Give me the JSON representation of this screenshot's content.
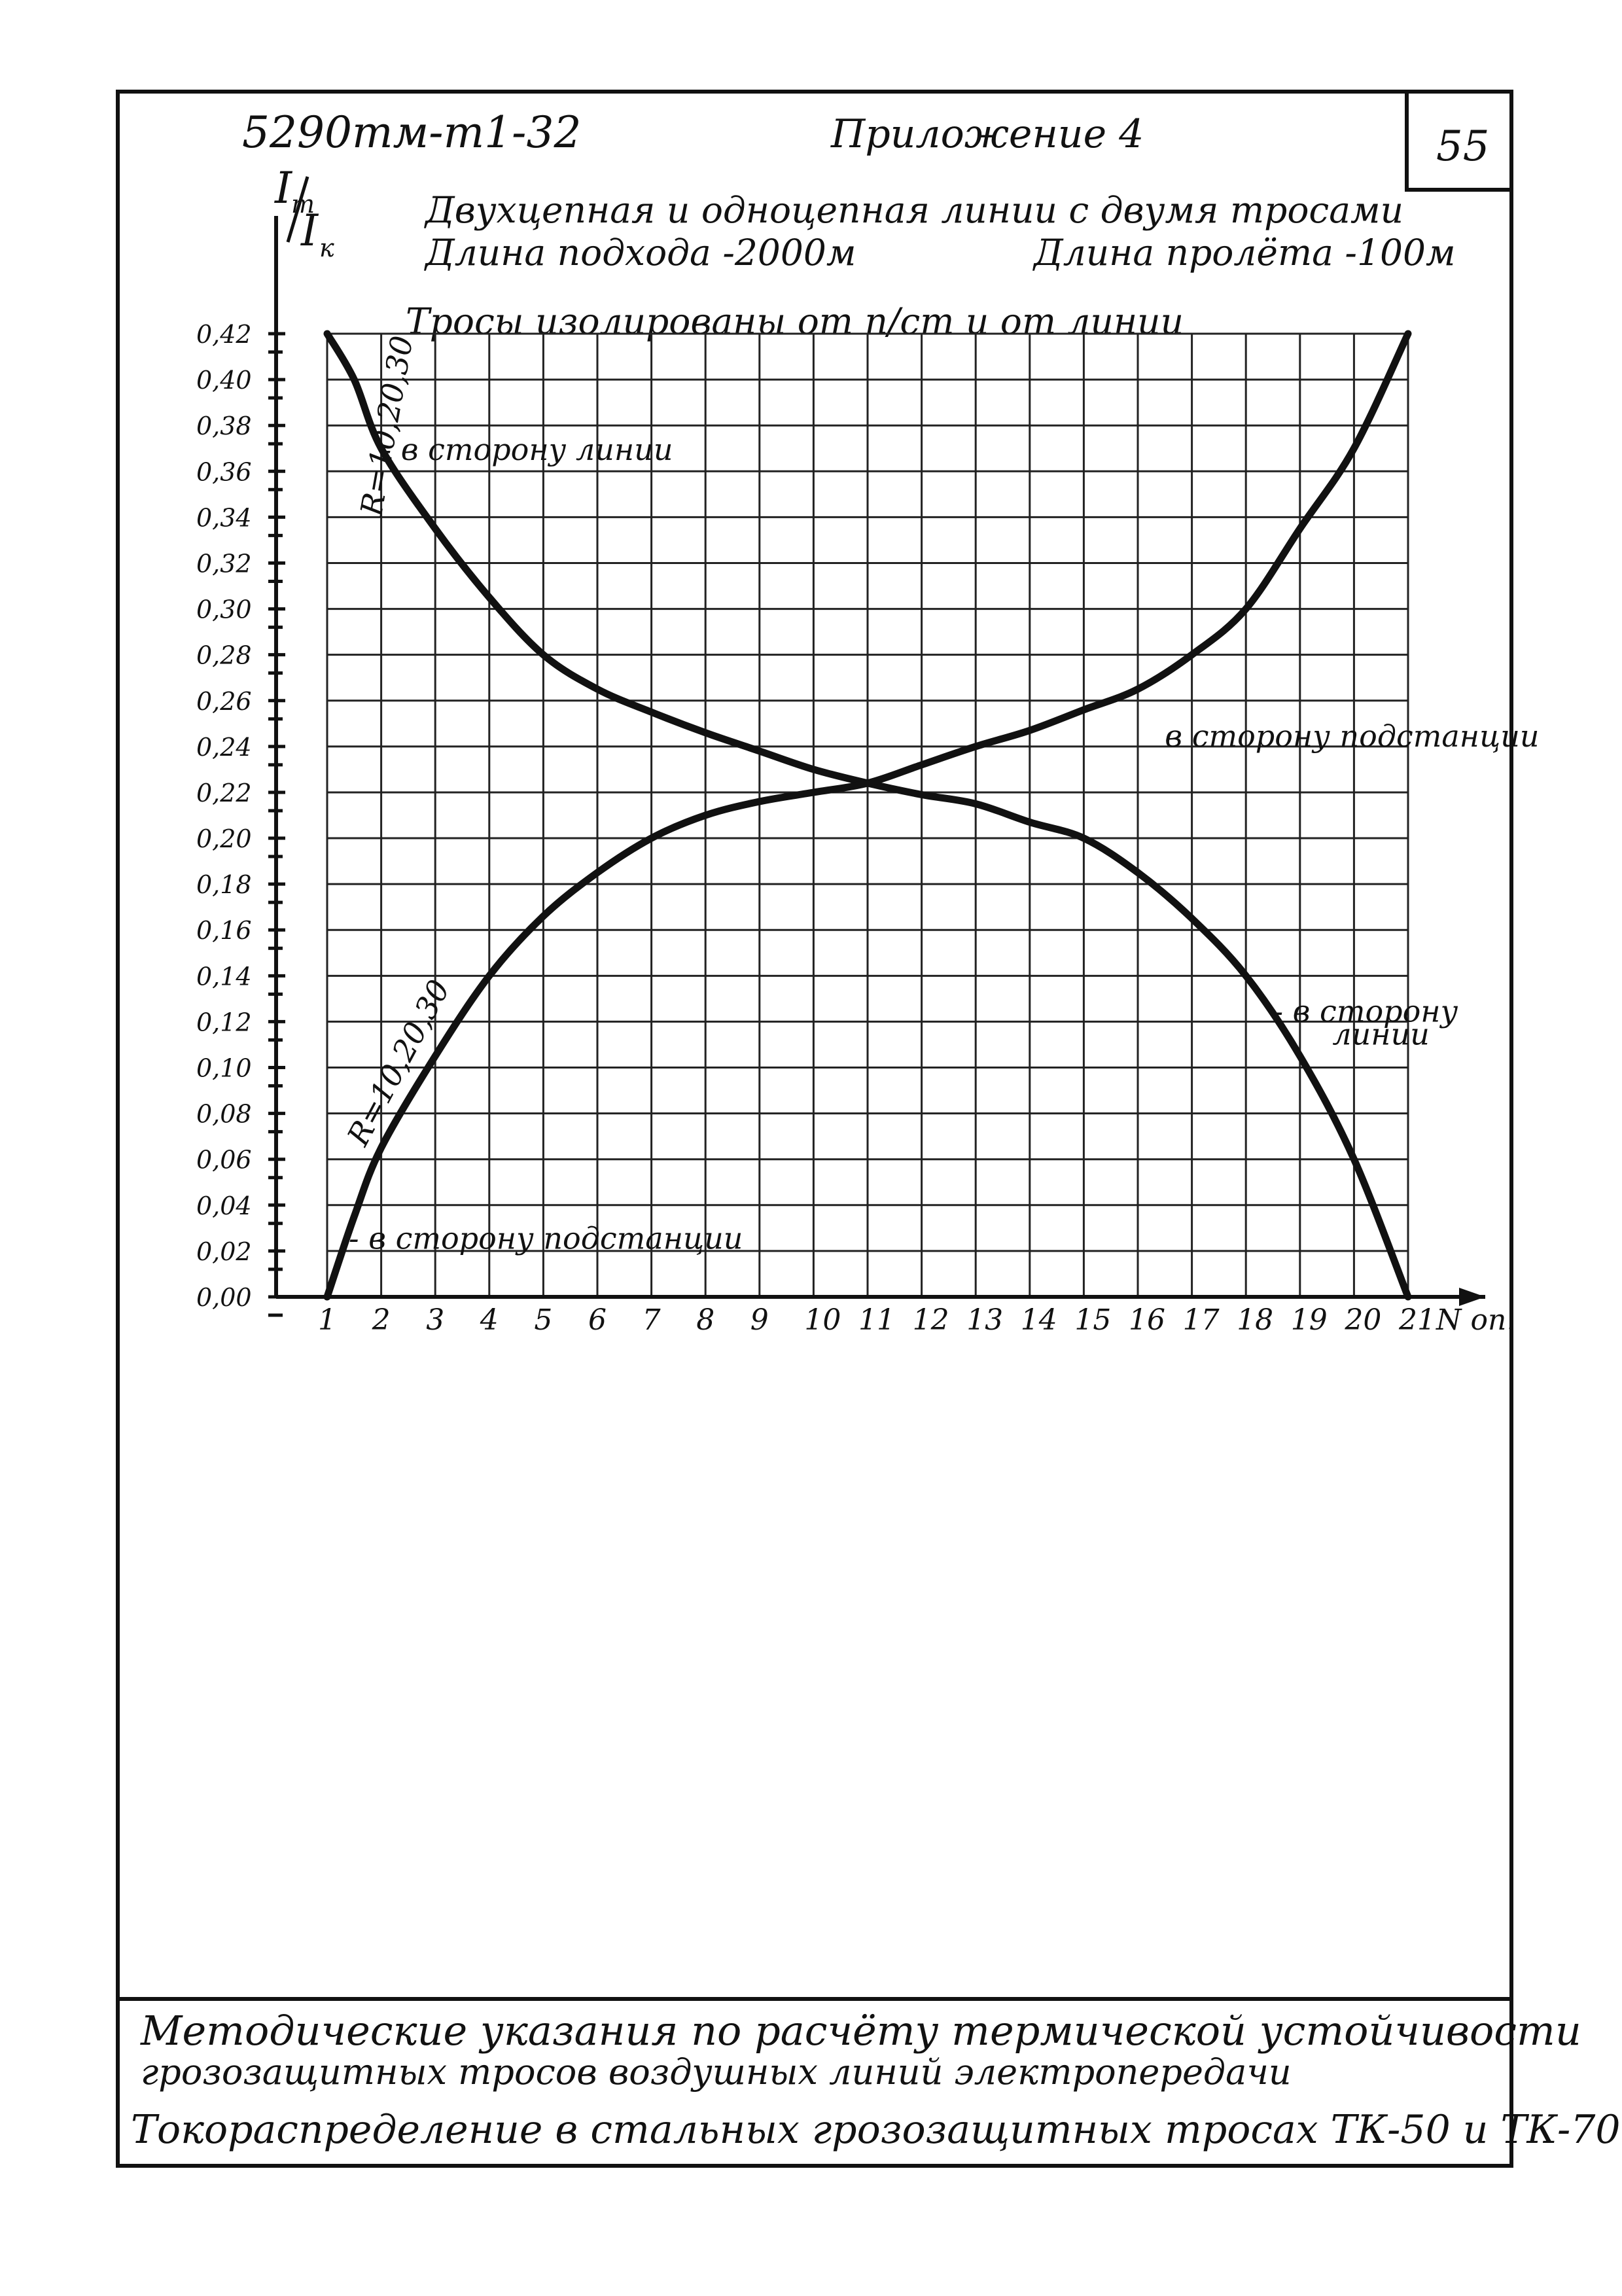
{
  "header": {
    "doc_code": "5290тм-т1-32",
    "appendix": "Приложение 4",
    "page_number": "55"
  },
  "captions": {
    "line1": "Двухцепная и одноцепная линии с двумя тросами",
    "line2a": "Длина подхода -2000м",
    "line2b": "Длина пролёта -100м",
    "line3": "Тросы изолированы от п/ст и от линии"
  },
  "footer": {
    "methodical1": "Методические указания по расчёту термической устойчивости",
    "methodical2": "грозозащитных тросов воздушных линий электропередачи",
    "title": "Токораспределение в стальных грозозащитных тросах ТК-50 и ТК-70"
  },
  "chart_data": {
    "type": "line",
    "ylabel_num": "I",
    "ylabel_num_sub": "т",
    "ylabel_den": "I",
    "ylabel_den_sub": "к",
    "xlabel": "N оп.",
    "x_ticks": [
      "1",
      "2",
      "3",
      "4",
      "5",
      "6",
      "7",
      "8",
      "9",
      "10",
      "11",
      "12",
      "13",
      "14",
      "15",
      "16",
      "17",
      "18",
      "19",
      "20",
      "21"
    ],
    "y_ticks": [
      "0,00",
      "0,02",
      "0,04",
      "0,06",
      "0,08",
      "0,10",
      "0,12",
      "0,14",
      "0,16",
      "0,18",
      "0,20",
      "0,22",
      "0,24",
      "0,26",
      "0,28",
      "0,30",
      "0,32",
      "0,34",
      "0,36",
      "0,38",
      "0,40",
      "0,42"
    ],
    "xlim": [
      1,
      21
    ],
    "ylim": [
      0,
      0.42
    ],
    "x": [
      1,
      1.5,
      2,
      3,
      4,
      5,
      6,
      7,
      8,
      9,
      10,
      11,
      12,
      13,
      14,
      15,
      16,
      17,
      18,
      19,
      20,
      21
    ],
    "series": [
      {
        "values": [
          0.42,
          0.4,
          0.37,
          0.335,
          0.305,
          0.28,
          0.265,
          0.255,
          0.246,
          0.238,
          0.23,
          0.224,
          0.219,
          0.215,
          0.207,
          0.2,
          0.185,
          0.165,
          0.14,
          0.105,
          0.06,
          0.0
        ]
      },
      {
        "values": [
          0.0,
          0.035,
          0.065,
          0.105,
          0.14,
          0.166,
          0.185,
          0.2,
          0.21,
          0.216,
          0.22,
          0.224,
          0.232,
          0.24,
          0.247,
          0.256,
          0.265,
          0.28,
          0.3,
          0.335,
          0.37,
          0.42
        ]
      }
    ],
    "annotations": [
      {
        "text": "- в сторону линии",
        "x": 2,
        "y": 0.365
      },
      {
        "text": "R=10,20,30",
        "x": 2,
        "y": 0.34
      },
      {
        "text": "в сторону подстанции",
        "x": 16.5,
        "y": 0.24
      },
      {
        "text": "- в сторону",
        "x": 18.5,
        "y": 0.12
      },
      {
        "text": "линии",
        "x": 19.6,
        "y": 0.11
      },
      {
        "text": "R=10,20,30",
        "x": 1.7,
        "y": 0.065
      },
      {
        "text": "- в сторону подстанции",
        "x": 1.4,
        "y": 0.021
      }
    ],
    "grid": true
  }
}
